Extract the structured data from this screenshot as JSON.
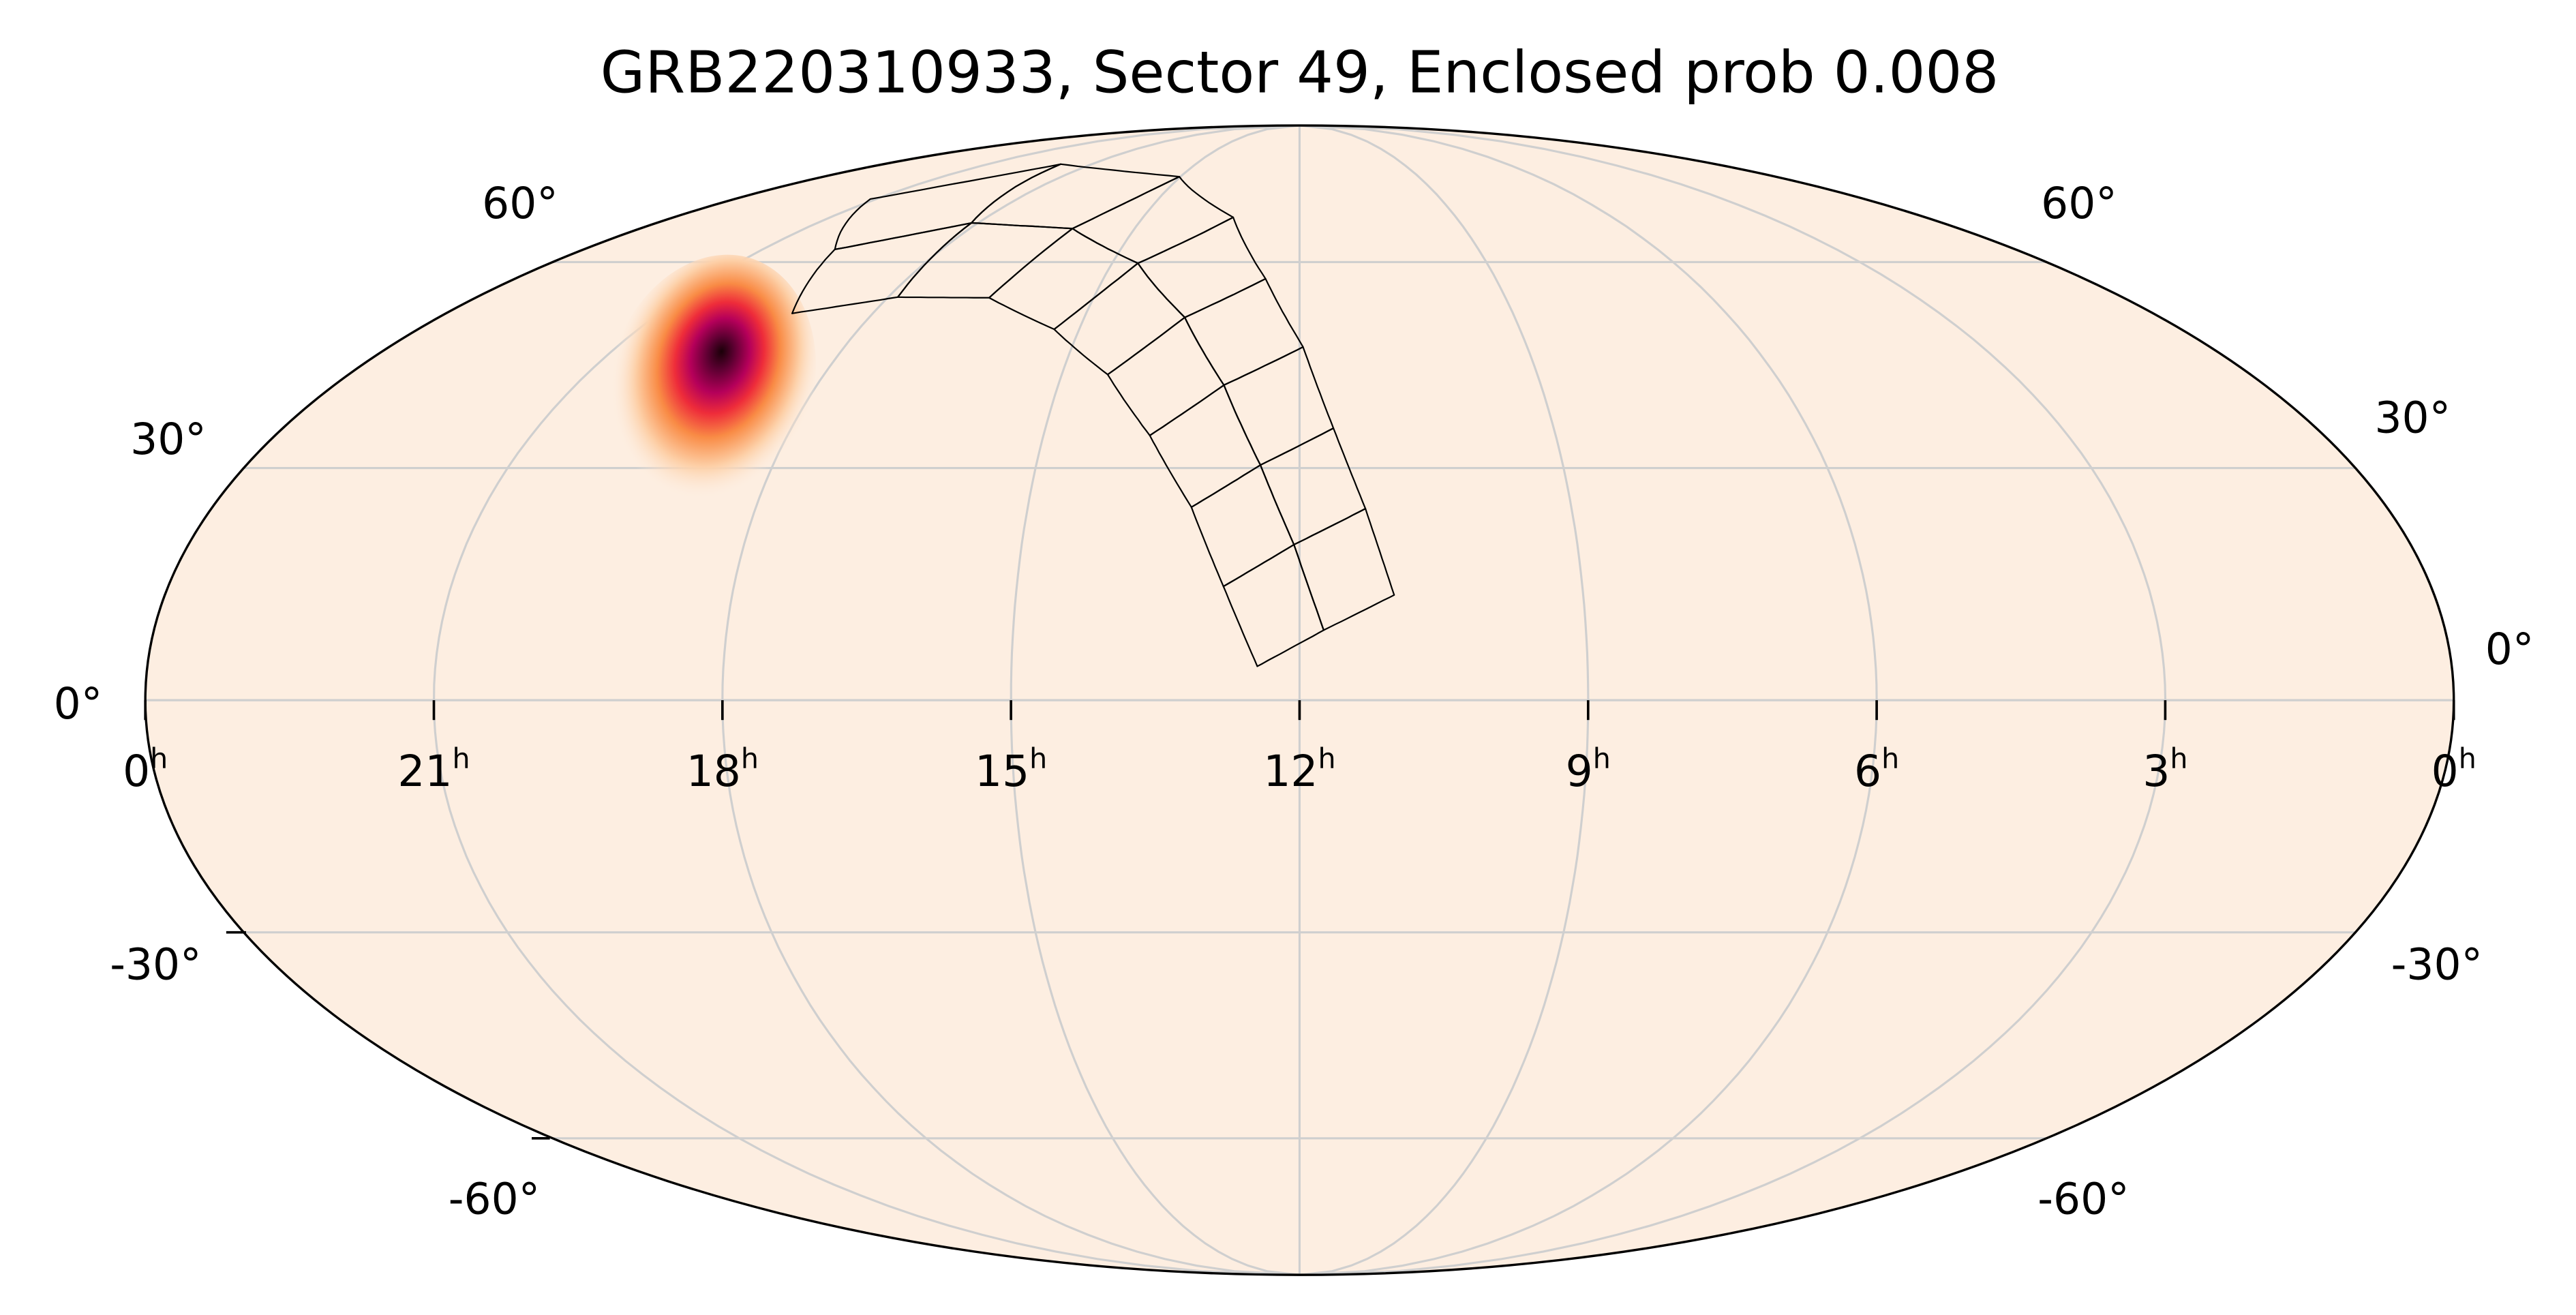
{
  "chart_data": {
    "type": "heatmap",
    "projection": "mollweide",
    "title": "GRB220310933, Sector 49, Enclosed prob 0.008",
    "grid": true,
    "background_color": "#fdeee1",
    "grid_color": "#cfcfcf",
    "colormap": [
      "#fdeee1",
      "#fdd0a8",
      "#f98b45",
      "#ee2c3a",
      "#b5005a",
      "#5a0030",
      "#1a0008"
    ],
    "ra_ticks": [
      {
        "label": "0",
        "unit": "h",
        "ra": 360
      },
      {
        "label": "21",
        "unit": "h",
        "ra": 315
      },
      {
        "label": "18",
        "unit": "h",
        "ra": 270
      },
      {
        "label": "15",
        "unit": "h",
        "ra": 225
      },
      {
        "label": "12",
        "unit": "h",
        "ra": 180
      },
      {
        "label": "9",
        "unit": "h",
        "ra": 135
      },
      {
        "label": "6",
        "unit": "h",
        "ra": 90
      },
      {
        "label": "3",
        "unit": "h",
        "ra": 45
      },
      {
        "label": "0",
        "unit": "h",
        "ra": 0
      }
    ],
    "dec_ticks": [
      {
        "label": "60°",
        "dec": 60
      },
      {
        "label": "30°",
        "dec": 30
      },
      {
        "label": "0°",
        "dec": 0
      },
      {
        "label": "-30°",
        "dec": -30
      },
      {
        "label": "-60°",
        "dec": -60
      }
    ],
    "probability_peak": {
      "ra": 290.6,
      "dec": 44.0
    },
    "footprint": {
      "description_rows": 8,
      "outer_edge": [
        [
          316.7,
          71.1
        ],
        [
          283.2,
          78.3
        ],
        [
          225.5,
          75.6
        ],
        [
          199.1,
          67.7
        ],
        [
          187.8,
          57.3
        ],
        [
          179.3,
          46.9
        ],
        [
          174.0,
          35.4
        ],
        [
          169.1,
          24.6
        ],
        [
          165.0,
          13.4
        ]
      ],
      "middle_line": [
        [
          296.8,
          62.1
        ],
        [
          271.9,
          66.7
        ],
        [
          242.0,
          65.7
        ],
        [
          218.8,
          59.8
        ],
        [
          204.0,
          51.3
        ],
        [
          194.1,
          41.4
        ],
        [
          186.7,
          30.4
        ],
        [
          180.9,
          19.9
        ],
        [
          176.2,
          8.9
        ]
      ],
      "inner_edge": [
        [
          287.0,
          51.9
        ],
        [
          267.9,
          54.4
        ],
        [
          247.8,
          54.3
        ],
        [
          230.1,
          49.5
        ],
        [
          216.3,
          42.9
        ],
        [
          206.3,
          34.4
        ],
        [
          197.9,
          24.8
        ],
        [
          192.1,
          14.5
        ],
        [
          186.6,
          4.3
        ]
      ]
    }
  }
}
